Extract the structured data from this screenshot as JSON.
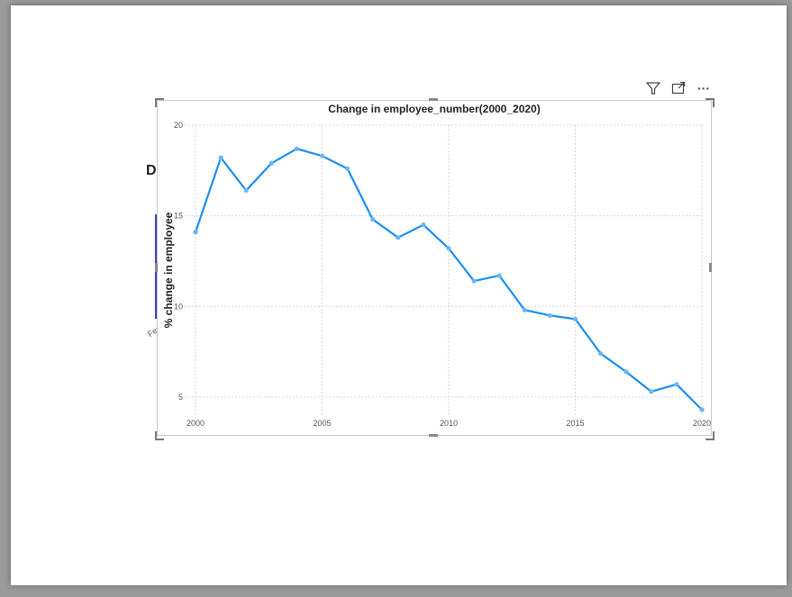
{
  "background": {
    "title_fragment": "Di",
    "axis_fragment": "Fer"
  },
  "toolbar": {
    "filter_icon": "filter-icon",
    "focus_icon": "focus-mode-icon",
    "more_icon": "more-options-icon",
    "more_label": "···"
  },
  "chart_data": {
    "type": "line",
    "title": "Change in employee_number(2000_2020)",
    "xlabel": "",
    "ylabel": "% change in employee",
    "x": [
      2000,
      2001,
      2002,
      2003,
      2004,
      2005,
      2006,
      2007,
      2008,
      2009,
      2010,
      2011,
      2012,
      2013,
      2014,
      2015,
      2016,
      2017,
      2018,
      2019,
      2020
    ],
    "values": [
      14.1,
      18.2,
      16.4,
      17.9,
      18.7,
      18.3,
      17.6,
      14.8,
      13.8,
      14.5,
      13.2,
      11.4,
      11.7,
      9.8,
      9.5,
      9.3,
      7.4,
      6.4,
      5.3,
      5.7,
      4.3
    ],
    "xticks": [
      "2000",
      "2005",
      "2010",
      "2015",
      "2020"
    ],
    "yticks": [
      "5",
      "10",
      "15",
      "20"
    ],
    "xlim": [
      2000,
      2020
    ],
    "ylim": [
      4.3,
      20
    ],
    "grid": true,
    "color": "#1c8ef0"
  }
}
